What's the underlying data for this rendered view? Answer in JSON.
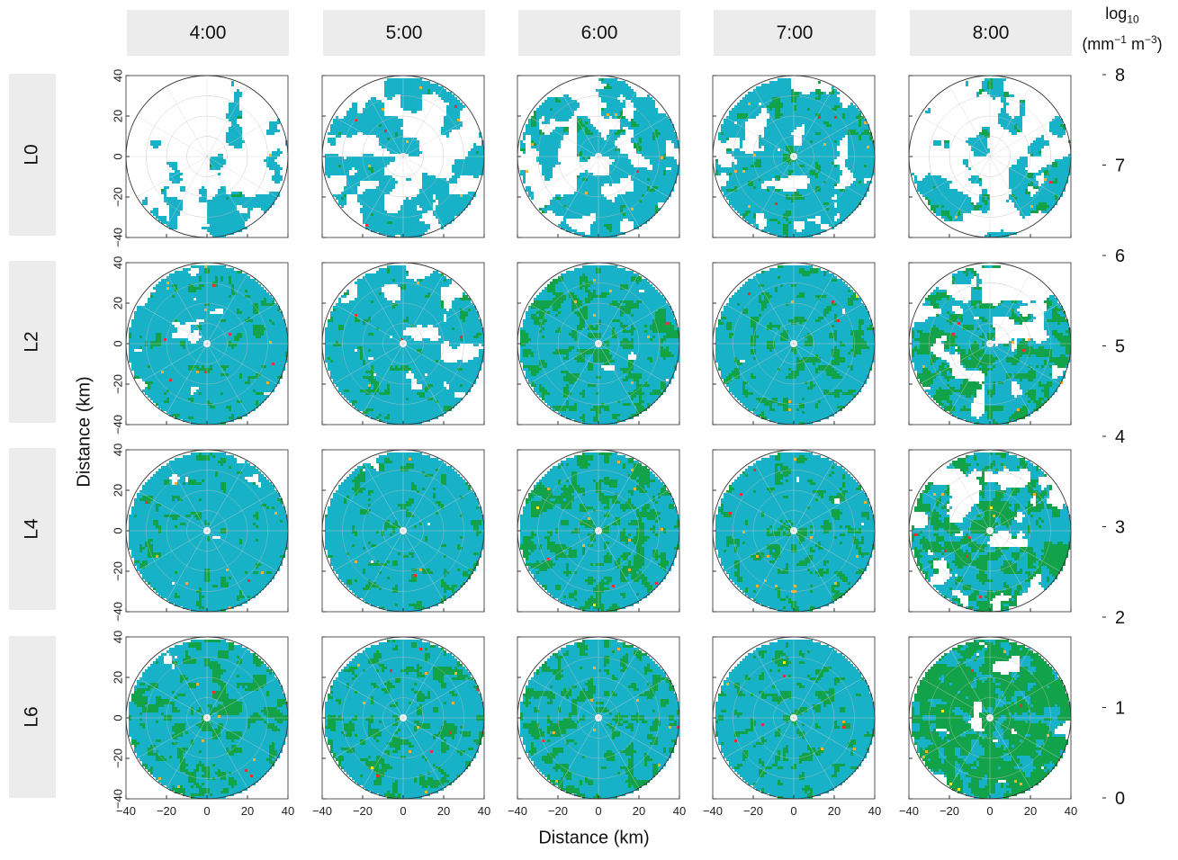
{
  "chart_data": {
    "type": "heatmap",
    "description_grid": "5x4 grid of circular polar radar panels",
    "columns": [
      "4:00",
      "5:00",
      "6:00",
      "7:00",
      "8:00"
    ],
    "rows": [
      "L0",
      "L2",
      "L4",
      "L6"
    ],
    "xlabel": "Distance (km)",
    "ylabel": "Distance (km)",
    "xlim": [
      -40,
      40
    ],
    "ylim": [
      -40,
      40
    ],
    "x_ticks": [
      "−40",
      "−20",
      "0",
      "20",
      "40"
    ],
    "y_ticks": [
      "40",
      "20",
      "0",
      "−20",
      "−40"
    ],
    "radar_range_km": 40,
    "colorbar": {
      "title_base": "log",
      "title_sub": "10",
      "unit_a": "(mm",
      "unit_a_sup": "−1",
      "unit_b": " m",
      "unit_b_sup": "−3",
      "unit_end": ")",
      "ticks": [
        "0",
        "1",
        "2",
        "3",
        "4",
        "5",
        "6",
        "7",
        "8"
      ],
      "colors": [
        "#1f6fb4",
        "#17b2c8",
        "#12a24a",
        "#fff200",
        "#f7b12d",
        "#ee2e34",
        "#9b2b2e",
        "#d35aa0"
      ]
    },
    "coverage": [
      [
        0.38,
        0.52,
        0.6,
        0.62,
        0.46
      ],
      [
        0.7,
        0.68,
        0.82,
        0.86,
        0.6
      ],
      [
        0.8,
        0.8,
        0.88,
        0.86,
        0.62
      ],
      [
        0.9,
        0.88,
        0.96,
        0.92,
        0.72
      ]
    ],
    "green_fraction": [
      [
        0.2,
        0.22,
        0.3,
        0.32,
        0.32
      ],
      [
        0.3,
        0.28,
        0.38,
        0.36,
        0.45
      ],
      [
        0.3,
        0.32,
        0.42,
        0.36,
        0.5
      ],
      [
        0.4,
        0.36,
        0.4,
        0.34,
        0.58
      ]
    ]
  }
}
